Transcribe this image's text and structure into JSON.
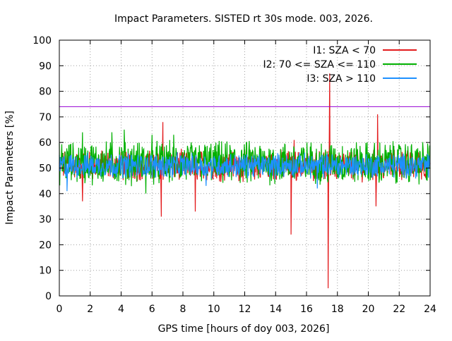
{
  "chart_data": {
    "type": "line",
    "title": "Impact Parameters. SISTED rt 30s mode. 003, 2026.",
    "xlabel": "GPS time [hours of doy 003, 2026]",
    "ylabel": "Impact Parameters [%]",
    "xlim": [
      0,
      24
    ],
    "ylim": [
      0,
      100
    ],
    "xticks": [
      0,
      2,
      4,
      6,
      8,
      10,
      12,
      14,
      16,
      18,
      20,
      22,
      24
    ],
    "yticks": [
      0,
      10,
      20,
      30,
      40,
      50,
      60,
      70,
      80,
      90,
      100
    ],
    "grid": true,
    "legend_position": "top-right",
    "reference_line": {
      "y": 74,
      "color": "#9400d3"
    },
    "series": [
      {
        "name": "I1: SZA < 70",
        "color": "#e31a1c",
        "baseline": 51,
        "spread": 5,
        "spikes": [
          {
            "x": 1.5,
            "y": 37
          },
          {
            "x": 6.6,
            "y": 31
          },
          {
            "x": 6.7,
            "y": 68
          },
          {
            "x": 8.8,
            "y": 33
          },
          {
            "x": 15.0,
            "y": 24
          },
          {
            "x": 15.2,
            "y": 61
          },
          {
            "x": 17.4,
            "y": 3
          },
          {
            "x": 17.5,
            "y": 87
          },
          {
            "x": 20.5,
            "y": 35
          },
          {
            "x": 20.6,
            "y": 71
          }
        ]
      },
      {
        "name": "I2: 70 <= SZA <= 110",
        "color": "#00b000",
        "baseline": 52,
        "spread": 7,
        "spikes": [
          {
            "x": 1.5,
            "y": 64
          },
          {
            "x": 3.4,
            "y": 64
          },
          {
            "x": 4.2,
            "y": 65
          },
          {
            "x": 5.6,
            "y": 40
          },
          {
            "x": 6.0,
            "y": 63
          },
          {
            "x": 7.4,
            "y": 63
          }
        ]
      },
      {
        "name": "I3: SZA > 110",
        "color": "#1e90ff",
        "baseline": 51,
        "spread": 4,
        "spikes": [
          {
            "x": 0.5,
            "y": 41
          },
          {
            "x": 9.5,
            "y": 43
          },
          {
            "x": 16.7,
            "y": 42
          }
        ]
      }
    ]
  }
}
